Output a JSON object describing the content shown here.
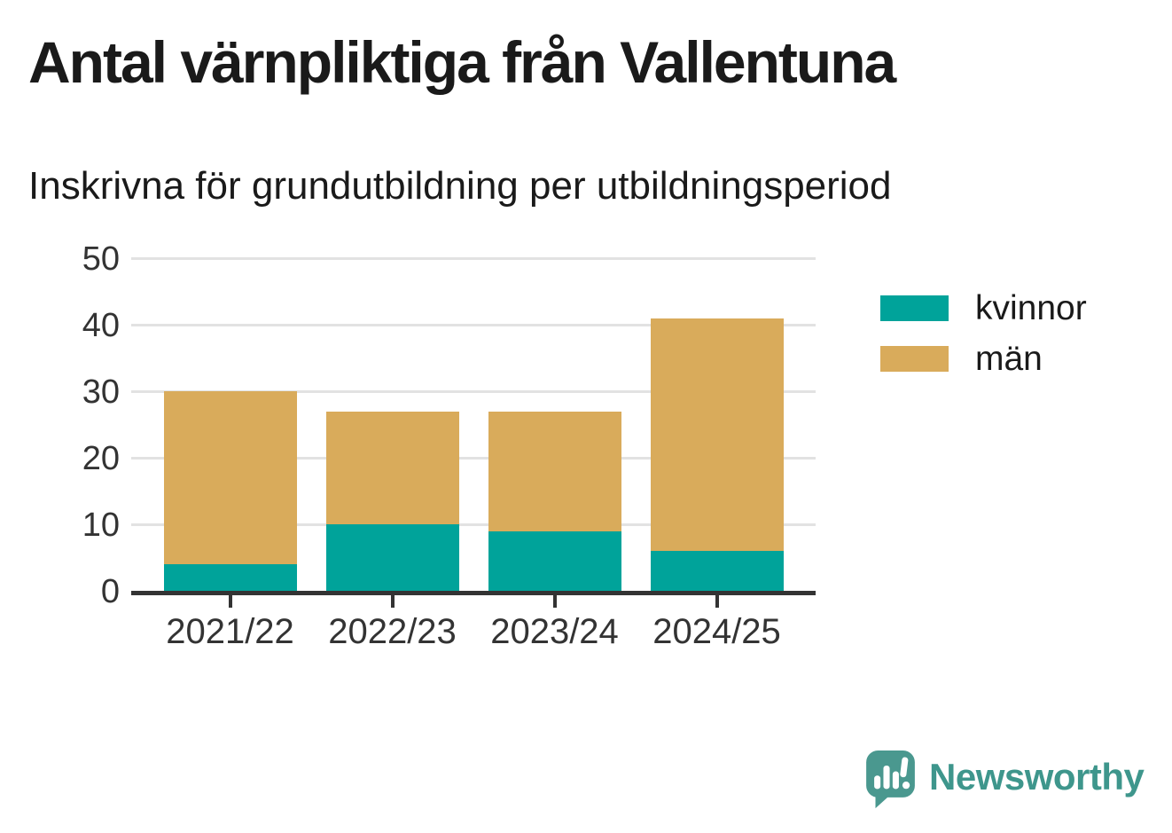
{
  "chart_data": {
    "type": "bar",
    "stacked": true,
    "title": "Antal värnpliktiga från Vallentuna",
    "subtitle": "Inskrivna för grundutbildning per utbildningsperiod",
    "categories": [
      "2021/22",
      "2022/23",
      "2023/24",
      "2024/25"
    ],
    "series": [
      {
        "name": "kvinnor",
        "color": "#00A39A",
        "values": [
          4,
          10,
          9,
          6
        ]
      },
      {
        "name": "män",
        "color": "#D9AB5B",
        "values": [
          26,
          17,
          18,
          35
        ]
      }
    ],
    "stack_totals": [
      30,
      27,
      27,
      41
    ],
    "xlabel": "",
    "ylabel": "",
    "yticks": [
      0,
      10,
      20,
      30,
      40,
      50
    ],
    "ylim": [
      0,
      50
    ],
    "grid": true,
    "legend_position": "right-top",
    "axis_color": "#333333",
    "gridline_color": "#E2E2E2"
  },
  "footer": {
    "brand": "Newsworthy",
    "brand_color": "#3E968C",
    "logo_icon": "newsworthy-speech-bubble-chart-icon"
  }
}
